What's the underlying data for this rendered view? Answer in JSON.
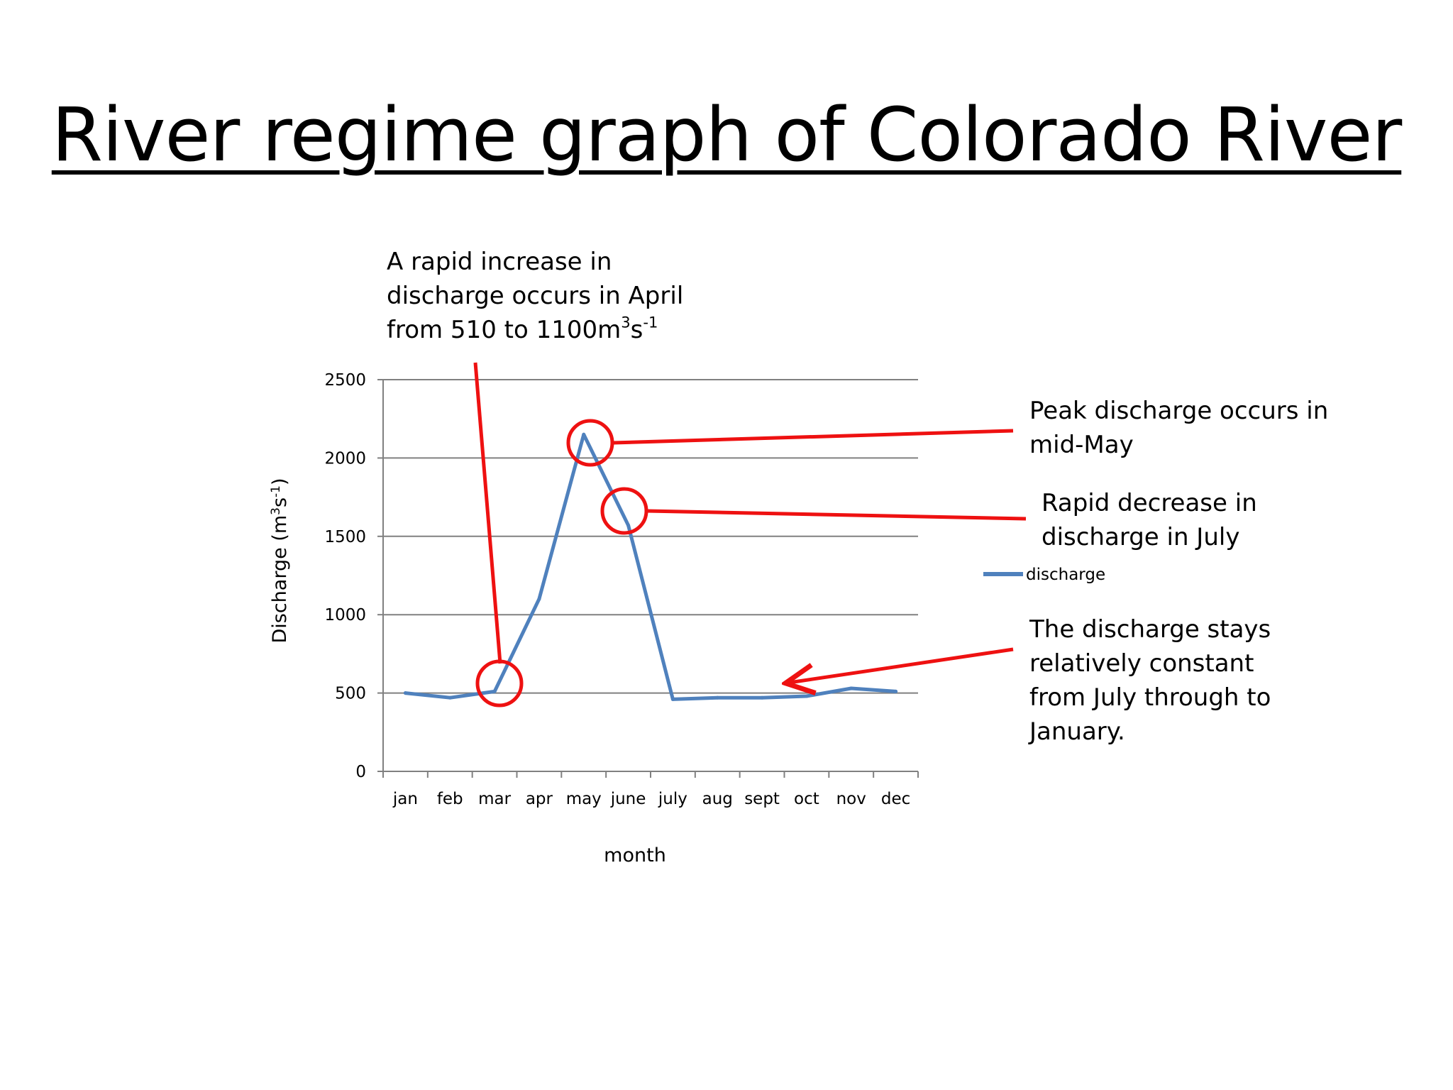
{
  "title": "River regime graph of Colorado River",
  "annotations": {
    "april": {
      "lines": [
        "A rapid increase in",
        "discharge occurs in April"
      ],
      "line3_prefix": "from 510 to 1100m",
      "line3_sup1": "3",
      "line3_mid": "s",
      "line3_sup2": "-1"
    },
    "peak": {
      "lines": [
        "Peak discharge occurs in",
        "mid-May"
      ]
    },
    "decrease": {
      "lines": [
        "Rapid decrease in",
        "discharge in July"
      ]
    },
    "constant": {
      "lines": [
        "The discharge stays",
        "relatively constant",
        "from July through to",
        "January."
      ]
    }
  },
  "colors": {
    "series": "#4F81BD",
    "annotation": "#EE1111",
    "gridline": "#808080"
  },
  "chart_data": {
    "type": "line",
    "categories": [
      "jan",
      "feb",
      "mar",
      "apr",
      "may",
      "june",
      "july",
      "aug",
      "sept",
      "oct",
      "nov",
      "dec"
    ],
    "series": [
      {
        "name": "discharge",
        "values": [
          500,
          470,
          510,
          1100,
          2150,
          1570,
          460,
          470,
          470,
          480,
          530,
          510
        ]
      }
    ],
    "xlabel": "month",
    "ylabel_prefix": "Discharge (m",
    "ylabel_sup1": "3",
    "ylabel_mid": "s",
    "ylabel_sup2": "-1",
    "ylabel_suffix": ")",
    "ylim": [
      0,
      2500
    ],
    "yticks": [
      0,
      500,
      1000,
      1500,
      2000,
      2500
    ],
    "grid": true,
    "legend": "right"
  }
}
